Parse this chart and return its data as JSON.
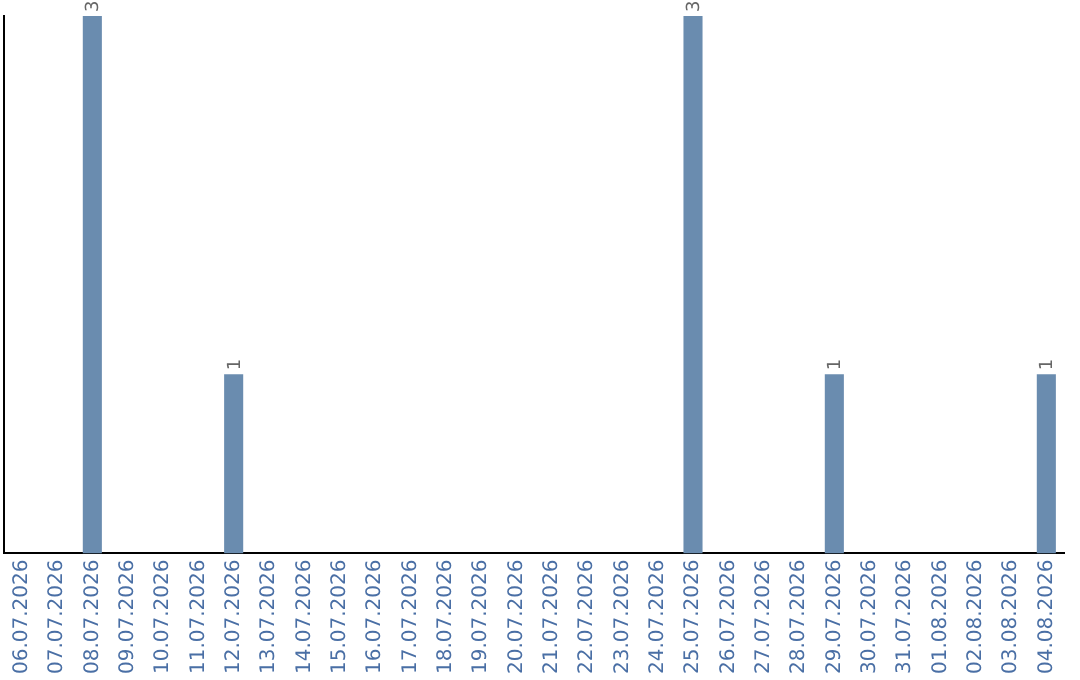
{
  "chart_data": {
    "type": "bar",
    "categories": [
      "06.07.2026",
      "07.07.2026",
      "08.07.2026",
      "09.07.2026",
      "10.07.2026",
      "11.07.2026",
      "12.07.2026",
      "13.07.2026",
      "14.07.2026",
      "15.07.2026",
      "16.07.2026",
      "17.07.2026",
      "18.07.2026",
      "19.07.2026",
      "20.07.2026",
      "21.07.2026",
      "22.07.2026",
      "23.07.2026",
      "24.07.2026",
      "25.07.2026",
      "26.07.2026",
      "27.07.2026",
      "28.07.2026",
      "29.07.2026",
      "30.07.2026",
      "31.07.2026",
      "01.08.2026",
      "02.08.2026",
      "03.08.2026",
      "04.08.2026"
    ],
    "values": [
      0,
      0,
      3,
      0,
      0,
      0,
      1,
      0,
      0,
      0,
      0,
      0,
      0,
      0,
      0,
      0,
      0,
      0,
      0,
      3,
      0,
      0,
      0,
      1,
      0,
      0,
      0,
      0,
      0,
      1
    ],
    "value_labels": [
      null,
      null,
      "3",
      null,
      null,
      null,
      "1",
      null,
      null,
      null,
      null,
      null,
      null,
      null,
      null,
      null,
      null,
      null,
      null,
      "3",
      null,
      null,
      null,
      "1",
      null,
      null,
      null,
      null,
      null,
      "1"
    ],
    "color": "#6a8caf",
    "grid": false,
    "legend": false,
    "tick_labels": "x"
  }
}
